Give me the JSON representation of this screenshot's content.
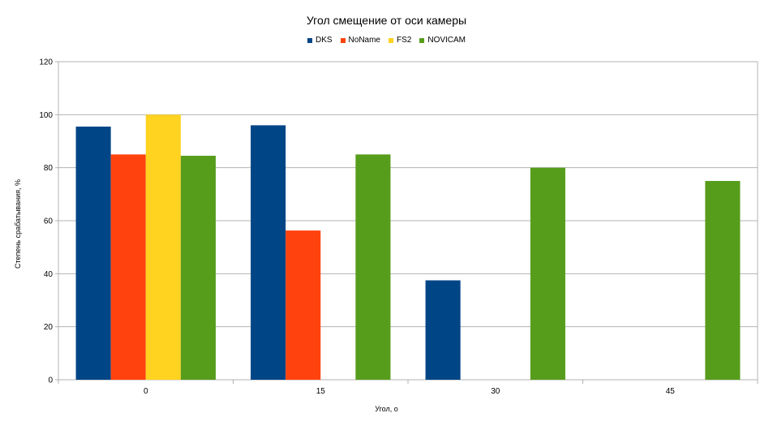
{
  "chart_data": {
    "type": "bar",
    "title": "Угол смещение от оси камеры",
    "xlabel": "Угол, о",
    "ylabel": "Степень срабатывания, %",
    "categories": [
      "0",
      "15",
      "30",
      "45"
    ],
    "series": [
      {
        "name": "DKS",
        "color": "#004586",
        "values": [
          95.5,
          96,
          37.5,
          0
        ]
      },
      {
        "name": "NoName",
        "color": "#ff420e",
        "values": [
          85,
          56.3,
          0,
          0
        ]
      },
      {
        "name": "FS2",
        "color": "#ffd320",
        "values": [
          100,
          0,
          0,
          0
        ]
      },
      {
        "name": "NOVICAM",
        "color": "#579d1c",
        "values": [
          84.5,
          85,
          80,
          75
        ]
      }
    ],
    "ylim": [
      0,
      120
    ],
    "yticks": [
      0,
      20,
      40,
      60,
      80,
      100,
      120
    ],
    "grid": true,
    "legend_position": "top"
  }
}
